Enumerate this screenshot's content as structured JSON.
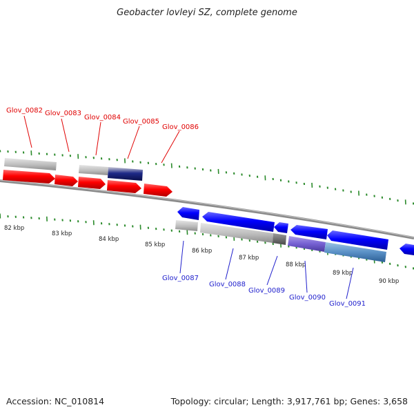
{
  "header": {
    "title": "Geobacter lovleyi SZ, complete genome"
  },
  "footer": {
    "accession": "Accession: NC_010814",
    "summary": "Topology: circular; Length: 3,917,761 bp; Genes: 3,658"
  },
  "scale_labels": [
    "82 kbp",
    "83 kbp",
    "84 kbp",
    "85 kbp",
    "86 kbp",
    "87 kbp",
    "88 kbp",
    "89 kbp",
    "90 kbp"
  ],
  "genes": [
    {
      "id": "Glov_0082",
      "strand": "+"
    },
    {
      "id": "Glov_0083",
      "strand": "+"
    },
    {
      "id": "Glov_0084",
      "strand": "+"
    },
    {
      "id": "Glov_0085",
      "strand": "+"
    },
    {
      "id": "Glov_0086",
      "strand": "+"
    },
    {
      "id": "Glov_0087",
      "strand": "-"
    },
    {
      "id": "Glov_0088",
      "strand": "-"
    },
    {
      "id": "Glov_0089",
      "strand": "-"
    },
    {
      "id": "Glov_0090",
      "strand": "-"
    },
    {
      "id": "Glov_0091",
      "strand": "-"
    }
  ],
  "colors": {
    "forward_strand": "#ff0000",
    "reverse_strand": "#0000ff",
    "backbone": "#8a8a8a",
    "tick": "#2a8a2a"
  }
}
